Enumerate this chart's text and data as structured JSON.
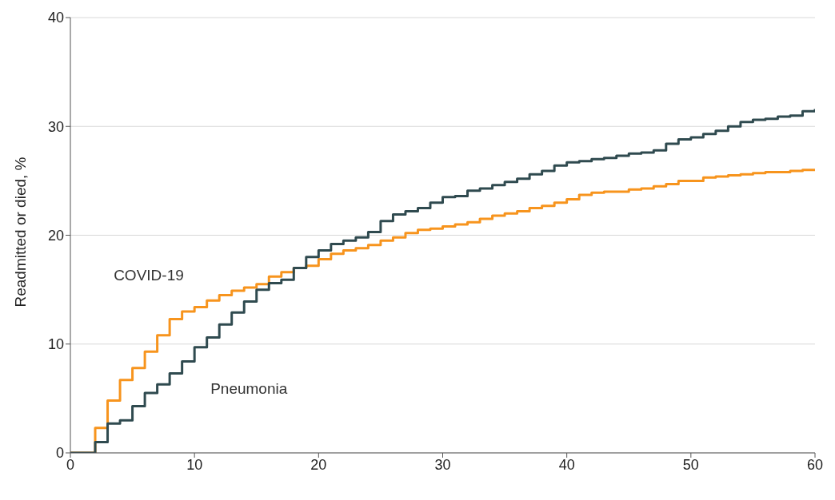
{
  "chart_data": {
    "type": "step",
    "ylabel": "Readmitted or died, %",
    "x": [
      0,
      1,
      2,
      3,
      4,
      5,
      6,
      7,
      8,
      9,
      10,
      11,
      12,
      13,
      14,
      15,
      16,
      17,
      18,
      19,
      20,
      21,
      22,
      23,
      24,
      25,
      26,
      27,
      28,
      29,
      30,
      31,
      32,
      33,
      34,
      35,
      36,
      37,
      38,
      39,
      40,
      41,
      42,
      43,
      44,
      45,
      46,
      47,
      48,
      49,
      50,
      51,
      52,
      53,
      54,
      55,
      56,
      57,
      58,
      59,
      60
    ],
    "series": [
      {
        "name": "COVID-19",
        "color": "#f7941d",
        "values": [
          0,
          0,
          2.3,
          4.8,
          6.7,
          7.8,
          9.3,
          10.8,
          12.3,
          13.0,
          13.4,
          14.0,
          14.5,
          14.9,
          15.2,
          15.5,
          16.2,
          16.6,
          17.0,
          17.2,
          17.8,
          18.3,
          18.6,
          18.8,
          19.1,
          19.5,
          19.8,
          20.2,
          20.5,
          20.6,
          20.8,
          21.0,
          21.2,
          21.5,
          21.8,
          22.0,
          22.2,
          22.5,
          22.7,
          23.0,
          23.3,
          23.7,
          23.9,
          24.0,
          24.0,
          24.2,
          24.3,
          24.5,
          24.7,
          25.0,
          25.0,
          25.3,
          25.4,
          25.5,
          25.6,
          25.7,
          25.8,
          25.8,
          25.9,
          26.0,
          26.1
        ]
      },
      {
        "name": "Pneumonia",
        "color": "#2f4a4f",
        "values": [
          0,
          0,
          1.0,
          2.7,
          3.0,
          4.3,
          5.5,
          6.3,
          7.3,
          8.4,
          9.7,
          10.6,
          11.8,
          12.9,
          13.9,
          15.0,
          15.6,
          15.9,
          17.0,
          18.0,
          18.6,
          19.2,
          19.5,
          19.8,
          20.3,
          21.3,
          21.9,
          22.2,
          22.5,
          23.0,
          23.5,
          23.6,
          24.1,
          24.3,
          24.6,
          24.9,
          25.2,
          25.6,
          25.9,
          26.4,
          26.7,
          26.8,
          27.0,
          27.1,
          27.3,
          27.5,
          27.6,
          27.8,
          28.4,
          28.8,
          29.0,
          29.3,
          29.6,
          30.0,
          30.4,
          30.6,
          30.7,
          30.9,
          31.0,
          31.4,
          31.6
        ]
      }
    ],
    "xlim": [
      0,
      60
    ],
    "xticks": [
      0,
      10,
      20,
      30,
      40,
      50,
      60
    ],
    "ylim": [
      0,
      40
    ],
    "yticks": [
      0,
      10,
      20,
      30,
      40
    ],
    "grid": "y",
    "legend": false,
    "marker": "none",
    "line_style": "solid"
  }
}
